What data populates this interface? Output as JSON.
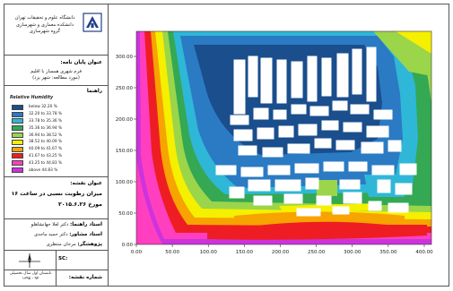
{
  "header": {
    "uni_line1": "دانشگاه علوم و تحقیقات تهران",
    "uni_line2": "دانشکده معماری و شهرسازی",
    "uni_line3": "گروه شهرسازی"
  },
  "thesis": {
    "heading": "عنوان پایان نامه:",
    "line1": "فرم شهری همساز با اقلیم",
    "line2": "(مورد مطالعه: شهر یزد)"
  },
  "legend": {
    "heading": "راهنما",
    "title": "Relative Humidity",
    "items": [
      {
        "label": "below 32.20 %",
        "color": "#1a4e8c"
      },
      {
        "label": "32.20 to 33.78 %",
        "color": "#2b7ac4"
      },
      {
        "label": "33.78 to 35.36 %",
        "color": "#2fb7d8"
      },
      {
        "label": "35.36 to 36.94 %",
        "color": "#34a853"
      },
      {
        "label": "36.94 to 38.52 %",
        "color": "#9bd54a"
      },
      {
        "label": "38.52 to 40.09 %",
        "color": "#f4f000"
      },
      {
        "label": "40.09 to 41.67 %",
        "color": "#f7a300"
      },
      {
        "label": "41.67 to 43.25 %",
        "color": "#ee1d23"
      },
      {
        "label": "43.25 to 44.83 %",
        "color": "#ff3fc0"
      },
      {
        "label": "above 44.83 %",
        "color": "#cc33dd"
      }
    ]
  },
  "map": {
    "heading": "عنوان نقشه:",
    "title_line1": "میزان رطوبت نسبی در ساعت ۱۶",
    "title_line2": "مورخ ۲۰۱۵.۶.۲۶"
  },
  "advisors": {
    "guide_label": "استاد راهنما:",
    "guide_name": "دکتر لعلا جهانشاهلو",
    "consult_label": "استاد مشاور:",
    "consult_name": "دکتر حمید ماجدی",
    "researcher_label": "پژوهشگر:",
    "researcher_name": "مرجان منتظری"
  },
  "scale": {
    "label": "SC:"
  },
  "term": {
    "line1": "تابستان اول سال تحصیلی",
    "line2": "۹۴ - ۱۳۹۵"
  },
  "sheet_no": {
    "label": "شماره نقشه:"
  },
  "chart_data": {
    "type": "heatmap",
    "title": "",
    "xlabel": "",
    "ylabel": "",
    "xlim": [
      0,
      410
    ],
    "ylim": [
      0,
      340
    ],
    "x_ticks": [
      "0.00",
      "50.00",
      "100.00",
      "150.00",
      "200.00",
      "250.00",
      "300.00",
      "350.00",
      "400.00"
    ],
    "y_ticks": [
      "0.00",
      "50.00",
      "100.00",
      "150.00",
      "200.00",
      "250.00",
      "300.00"
    ],
    "x_tick_values": [
      0,
      50,
      100,
      150,
      200,
      250,
      300,
      350,
      400
    ],
    "y_tick_values": [
      0,
      50,
      100,
      150,
      200,
      250,
      300
    ]
  }
}
